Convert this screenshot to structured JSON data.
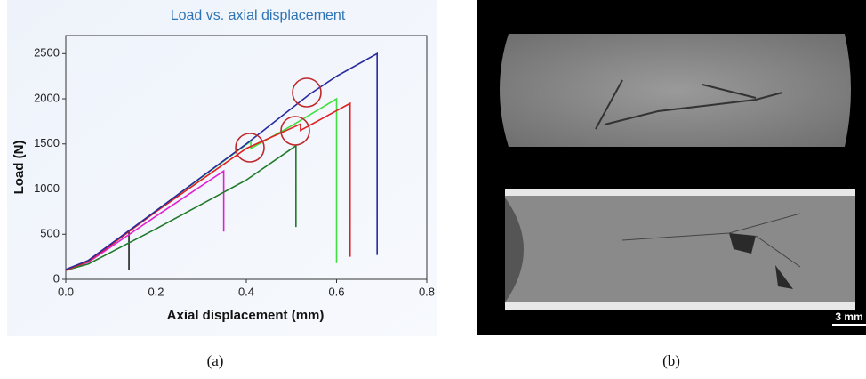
{
  "chart_data": {
    "type": "line",
    "title": "Load vs. axial displacement",
    "xlabel": "Axial displacement (mm)",
    "ylabel": "Load (N)",
    "xlim": [
      0,
      0.8
    ],
    "xticks": [
      {
        "value": 0,
        "label": "0.0"
      },
      0.2,
      0.4,
      0.6,
      0.8
    ],
    "ylim": [
      0,
      2700
    ],
    "yticks": [
      0,
      500,
      1000,
      1500,
      2000,
      2500
    ],
    "series": [
      {
        "color": "#222222",
        "x": [
          0,
          0.05,
          0.1,
          0.14,
          0.14
        ],
        "values": [
          100,
          200,
          380,
          530,
          100
        ]
      },
      {
        "color": "#e020d0",
        "x": [
          0,
          0.05,
          0.2,
          0.35,
          0.35
        ],
        "values": [
          100,
          190,
          700,
          1200,
          530
        ]
      },
      {
        "color": "#1f7a2a",
        "x": [
          0,
          0.05,
          0.2,
          0.4,
          0.51,
          0.51
        ],
        "values": [
          100,
          170,
          560,
          1100,
          1480,
          580
        ]
      },
      {
        "color": "#40e040",
        "x": [
          0,
          0.05,
          0.2,
          0.41,
          0.41,
          0.5,
          0.6,
          0.6
        ],
        "values": [
          100,
          200,
          760,
          1530,
          1450,
          1700,
          2000,
          180
        ]
      },
      {
        "color": "#e02020",
        "x": [
          0,
          0.05,
          0.2,
          0.4,
          0.52,
          0.52,
          0.63,
          0.63
        ],
        "values": [
          100,
          200,
          750,
          1450,
          1720,
          1650,
          1950,
          250
        ]
      },
      {
        "color": "#2a2aa0",
        "x": [
          0,
          0.05,
          0.2,
          0.4,
          0.54,
          0.6,
          0.69,
          0.69
        ],
        "values": [
          110,
          210,
          760,
          1500,
          2050,
          2250,
          2500,
          270
        ]
      }
    ]
  },
  "panel_b": {
    "scale_bar": "3 mm"
  },
  "captions": [
    "(a)",
    "(b)"
  ]
}
